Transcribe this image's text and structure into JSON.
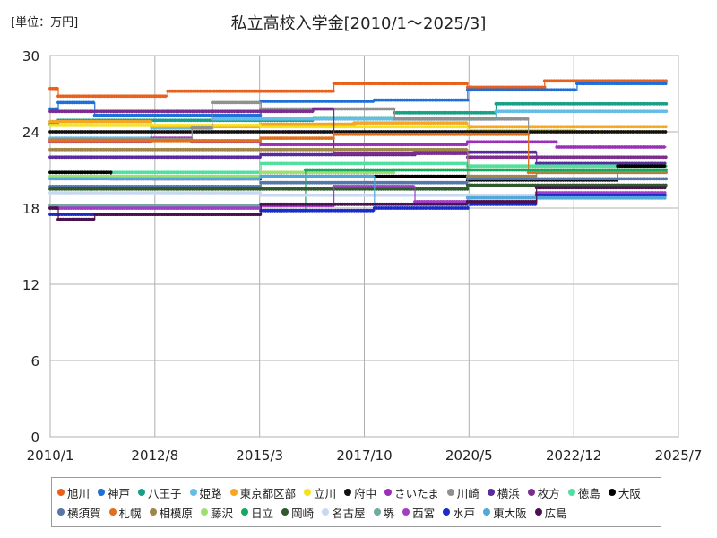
{
  "chart_data": {
    "type": "line",
    "title": "私立高校入学金[2010/1～2025/3]",
    "unit_label": "[単位：万円]",
    "xlabel": "",
    "ylabel": "",
    "ylim": [
      0,
      30
    ],
    "yticks": [
      0,
      6,
      12,
      18,
      24,
      30
    ],
    "xlim": [
      2010.0,
      2025.5
    ],
    "xticks": [
      {
        "label": "2010/1",
        "value": 2010.0
      },
      {
        "label": "2012/8",
        "value": 2012.583
      },
      {
        "label": "2015/3",
        "value": 2015.167
      },
      {
        "label": "2017/10",
        "value": 2017.75
      },
      {
        "label": "2020/5",
        "value": 2020.333
      },
      {
        "label": "2022/12",
        "value": 2022.917
      },
      {
        "label": "2025/7",
        "value": 2025.5
      }
    ],
    "grid": true,
    "legend": "bottom",
    "series": [
      {
        "name": "旭川",
        "color": "#e8601c",
        "points": [
          [
            2010.0,
            27.4
          ],
          [
            2010.2,
            26.8
          ],
          [
            2012.9,
            27.2
          ],
          [
            2017.0,
            27.8
          ],
          [
            2020.3,
            27.5
          ],
          [
            2022.2,
            28.0
          ],
          [
            2025.2,
            28.0
          ]
        ]
      },
      {
        "name": "神戸",
        "color": "#1f6fd8",
        "points": [
          [
            2010.0,
            25.8
          ],
          [
            2010.2,
            26.3
          ],
          [
            2011.1,
            25.3
          ],
          [
            2015.2,
            26.4
          ],
          [
            2018.0,
            26.5
          ],
          [
            2020.3,
            27.3
          ],
          [
            2023.0,
            27.8
          ],
          [
            2025.2,
            27.8
          ]
        ]
      },
      {
        "name": "八王子",
        "color": "#17a086",
        "points": [
          [
            2010.0,
            24.6
          ],
          [
            2010.2,
            24.9
          ],
          [
            2016.5,
            25.1
          ],
          [
            2018.5,
            25.5
          ],
          [
            2021.0,
            26.2
          ],
          [
            2025.2,
            26.2
          ]
        ]
      },
      {
        "name": "姫路",
        "color": "#63bde8",
        "points": [
          [
            2010.0,
            23.5
          ],
          [
            2012.5,
            24.3
          ],
          [
            2014.0,
            25.0
          ],
          [
            2020.3,
            25.0
          ],
          [
            2021.0,
            25.6
          ],
          [
            2025.2,
            25.6
          ]
        ]
      },
      {
        "name": "東京都区部",
        "color": "#f5a623",
        "points": [
          [
            2010.0,
            24.8
          ],
          [
            2012.5,
            24.4
          ],
          [
            2015.2,
            24.6
          ],
          [
            2017.5,
            24.7
          ],
          [
            2020.3,
            24.4
          ],
          [
            2025.2,
            24.4
          ]
        ]
      },
      {
        "name": "立川",
        "color": "#f5e21b",
        "points": [
          [
            2010.0,
            24.5
          ],
          [
            2015.2,
            24.4
          ],
          [
            2020.3,
            24.1
          ],
          [
            2023.0,
            24.0
          ],
          [
            2025.2,
            24.0
          ]
        ]
      },
      {
        "name": "府中",
        "color": "#111111",
        "points": [
          [
            2010.0,
            24.0
          ],
          [
            2025.2,
            24.0
          ]
        ]
      },
      {
        "name": "さいたま",
        "color": "#9b30b8",
        "points": [
          [
            2010.0,
            23.2
          ],
          [
            2012.5,
            23.5
          ],
          [
            2013.5,
            23.2
          ],
          [
            2015.2,
            23.0
          ],
          [
            2020.3,
            23.2
          ],
          [
            2022.5,
            22.8
          ],
          [
            2025.2,
            22.8
          ]
        ]
      },
      {
        "name": "川崎",
        "color": "#909090",
        "points": [
          [
            2010.0,
            23.4
          ],
          [
            2013.5,
            24.3
          ],
          [
            2014.0,
            26.3
          ],
          [
            2015.2,
            25.8
          ],
          [
            2018.5,
            25.0
          ],
          [
            2021.8,
            21.0
          ],
          [
            2025.2,
            21.0
          ]
        ]
      },
      {
        "name": "横浜",
        "color": "#5a2a9e",
        "points": [
          [
            2010.0,
            22.0
          ],
          [
            2015.2,
            22.2
          ],
          [
            2019.0,
            22.4
          ],
          [
            2020.3,
            22.4
          ],
          [
            2022.0,
            21.5
          ],
          [
            2025.2,
            21.5
          ]
        ]
      },
      {
        "name": "枚方",
        "color": "#7a2d8e",
        "points": [
          [
            2010.0,
            25.6
          ],
          [
            2015.2,
            25.6
          ],
          [
            2016.5,
            25.8
          ],
          [
            2017.0,
            22.3
          ],
          [
            2020.3,
            22.0
          ],
          [
            2025.2,
            22.0
          ]
        ]
      },
      {
        "name": "徳島",
        "color": "#4fe0a0",
        "points": [
          [
            2010.0,
            20.8
          ],
          [
            2015.2,
            21.5
          ],
          [
            2020.3,
            21.3
          ],
          [
            2025.2,
            21.3
          ]
        ]
      },
      {
        "name": "大阪",
        "color": "#000000",
        "points": [
          [
            2010.0,
            20.8
          ],
          [
            2011.5,
            20.3
          ],
          [
            2015.2,
            20.5
          ],
          [
            2020.3,
            20.2
          ],
          [
            2024.0,
            21.3
          ],
          [
            2025.2,
            21.3
          ]
        ]
      },
      {
        "name": "横須賀",
        "color": "#5576a8",
        "points": [
          [
            2010.0,
            19.7
          ],
          [
            2015.2,
            20.0
          ],
          [
            2020.3,
            20.3
          ],
          [
            2021.8,
            20.3
          ],
          [
            2025.2,
            20.3
          ]
        ]
      },
      {
        "name": "札幌",
        "color": "#e0701c",
        "points": [
          [
            2010.0,
            23.3
          ],
          [
            2015.2,
            23.5
          ],
          [
            2017.0,
            23.8
          ],
          [
            2020.3,
            23.8
          ],
          [
            2021.8,
            20.8
          ],
          [
            2025.2,
            20.8
          ]
        ]
      },
      {
        "name": "相模原",
        "color": "#a0864a",
        "points": [
          [
            2010.0,
            22.6
          ],
          [
            2015.2,
            22.6
          ],
          [
            2020.3,
            20.5
          ],
          [
            2022.0,
            20.8
          ],
          [
            2025.2,
            20.8
          ]
        ]
      },
      {
        "name": "藤沢",
        "color": "#9ee070",
        "points": [
          [
            2010.0,
            20.5
          ],
          [
            2015.2,
            20.8
          ],
          [
            2018.5,
            21.0
          ],
          [
            2019.8,
            21.0
          ],
          [
            2025.2,
            21.0
          ]
        ]
      },
      {
        "name": "日立",
        "color": "#15a85e",
        "points": [
          [
            2010.0,
            18.0
          ],
          [
            2015.2,
            17.8
          ],
          [
            2016.0,
            17.8
          ],
          [
            2016.3,
            21.0
          ],
          [
            2020.3,
            21.0
          ],
          [
            2025.2,
            21.0
          ]
        ]
      },
      {
        "name": "岡崎",
        "color": "#2e5a2e",
        "points": [
          [
            2010.0,
            19.5
          ],
          [
            2020.3,
            19.8
          ],
          [
            2025.2,
            19.8
          ]
        ]
      },
      {
        "name": "名古屋",
        "color": "#c8d8f0",
        "points": [
          [
            2010.0,
            19.2
          ],
          [
            2015.2,
            19.0
          ],
          [
            2020.3,
            19.0
          ],
          [
            2025.2,
            19.0
          ]
        ]
      },
      {
        "name": "堺",
        "color": "#6eaaa0",
        "points": [
          [
            2010.0,
            18.2
          ],
          [
            2015.2,
            18.3
          ],
          [
            2018.0,
            18.0
          ],
          [
            2020.3,
            18.5
          ],
          [
            2022.0,
            18.8
          ],
          [
            2025.2,
            18.8
          ]
        ]
      },
      {
        "name": "西宮",
        "color": "#a23ec4",
        "points": [
          [
            2010.0,
            18.0
          ],
          [
            2015.2,
            18.2
          ],
          [
            2017.0,
            19.7
          ],
          [
            2019.0,
            18.5
          ],
          [
            2020.3,
            18.3
          ],
          [
            2022.0,
            19.2
          ],
          [
            2025.2,
            19.2
          ]
        ]
      },
      {
        "name": "水戸",
        "color": "#1a2acc",
        "points": [
          [
            2010.0,
            17.5
          ],
          [
            2015.2,
            17.8
          ],
          [
            2018.0,
            18.0
          ],
          [
            2020.3,
            18.3
          ],
          [
            2022.0,
            19.0
          ],
          [
            2025.2,
            19.0
          ]
        ]
      },
      {
        "name": "東大阪",
        "color": "#54a8d8",
        "points": [
          [
            2010.0,
            20.3
          ],
          [
            2012.5,
            20.3
          ],
          [
            2015.2,
            20.5
          ],
          [
            2018.0,
            18.3
          ],
          [
            2020.3,
            18.8
          ],
          [
            2022.0,
            18.8
          ],
          [
            2025.2,
            18.8
          ]
        ]
      },
      {
        "name": "広島",
        "color": "#4a1050",
        "points": [
          [
            2010.0,
            18.0
          ],
          [
            2010.2,
            17.1
          ],
          [
            2011.1,
            17.5
          ],
          [
            2015.2,
            18.3
          ],
          [
            2020.3,
            18.5
          ],
          [
            2022.0,
            19.6
          ],
          [
            2025.2,
            19.6
          ]
        ]
      }
    ]
  }
}
